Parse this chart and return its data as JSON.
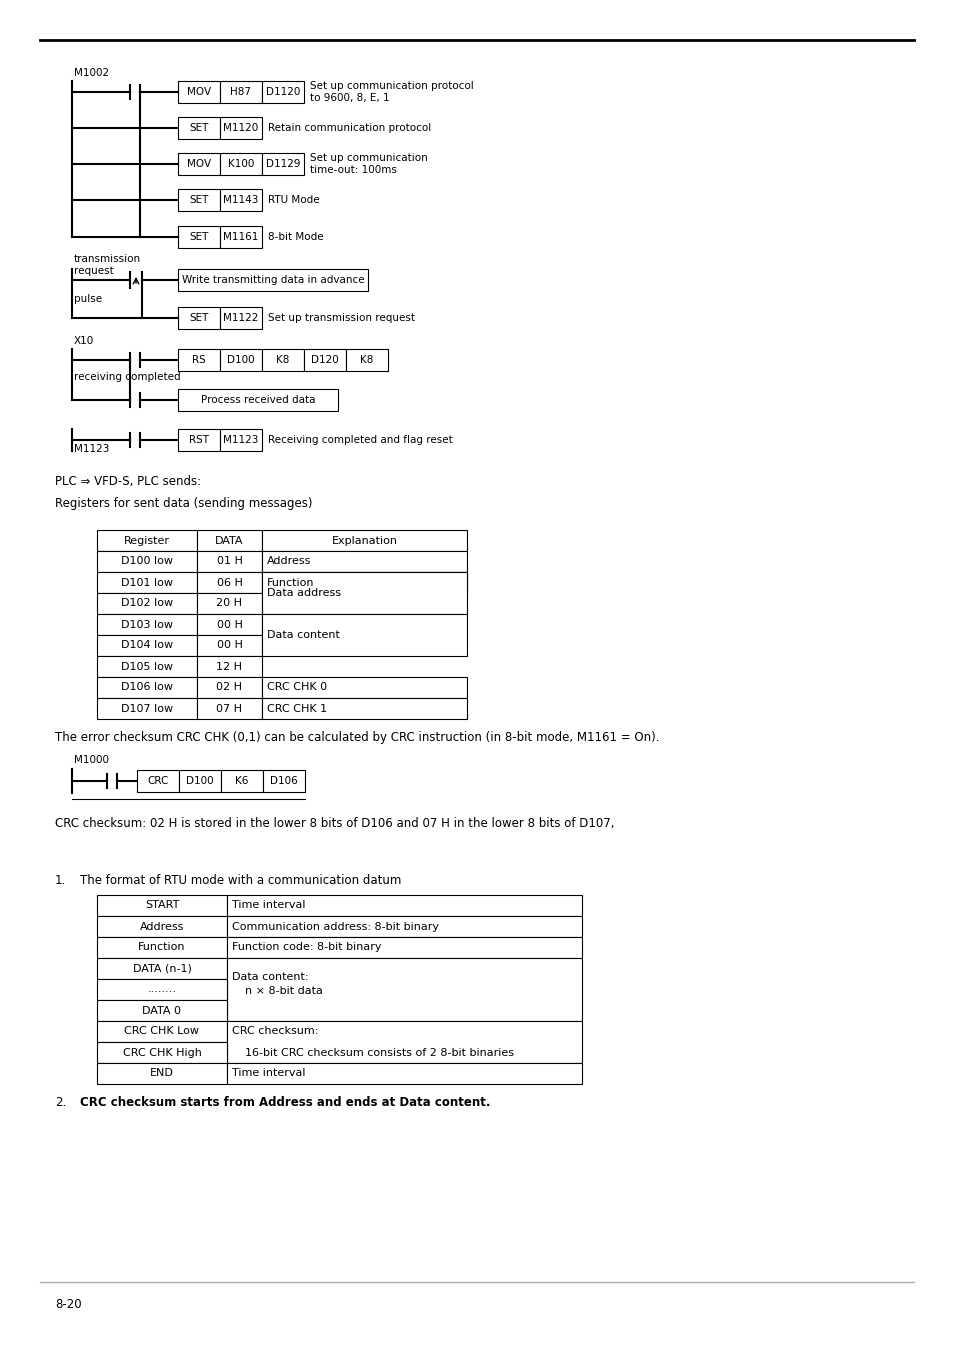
{
  "page_bg": "#ffffff",
  "page_number": "8-20",
  "text1": "PLC ⇒ VFD-S, PLC sends:",
  "text2": "Registers for sent data (sending messages)",
  "table1_headers": [
    "Register",
    "DATA",
    "Explanation"
  ],
  "table1_rows": [
    [
      "D100 low",
      "01 H",
      "Address"
    ],
    [
      "D101 low",
      "06 H",
      "Function"
    ],
    [
      "D102 low",
      "20 H",
      "Data address"
    ],
    [
      "D103 low",
      "00 H",
      ""
    ],
    [
      "D104 low",
      "00 H",
      "Data content"
    ],
    [
      "D105 low",
      "12 H",
      ""
    ],
    [
      "D106 low",
      "02 H",
      "CRC CHK 0"
    ],
    [
      "D107 low",
      "07 H",
      "CRC CHK 1"
    ]
  ],
  "text3": "The error checksum CRC CHK (0,1) can be calculated by CRC instruction (in 8-bit mode, M1161 = On).",
  "ladder2_label": "M1000",
  "ladder2_instructions": [
    "CRC",
    "D100",
    "K6",
    "D106"
  ],
  "text4": "CRC checksum: 02 H is stored in the lower 8 bits of D106 and 07 H in the lower 8 bits of D107,",
  "text5": "The format of RTU mode with a communication datum",
  "table2_left": [
    "START",
    "Address",
    "Function",
    "DATA (n-1)",
    "........",
    "DATA 0",
    "CRC CHK Low",
    "CRC CHK High",
    "END"
  ],
  "table2_right": [
    "Time interval",
    "Communication address: 8-bit binary",
    "Function code: 8-bit binary",
    "Data content:",
    "    n × 8-bit data",
    "",
    "CRC checksum:",
    "    16-bit CRC checksum consists of 2 8-bit binaries",
    "Time interval"
  ],
  "text6": "CRC checksum starts from Address and ends at Data content."
}
